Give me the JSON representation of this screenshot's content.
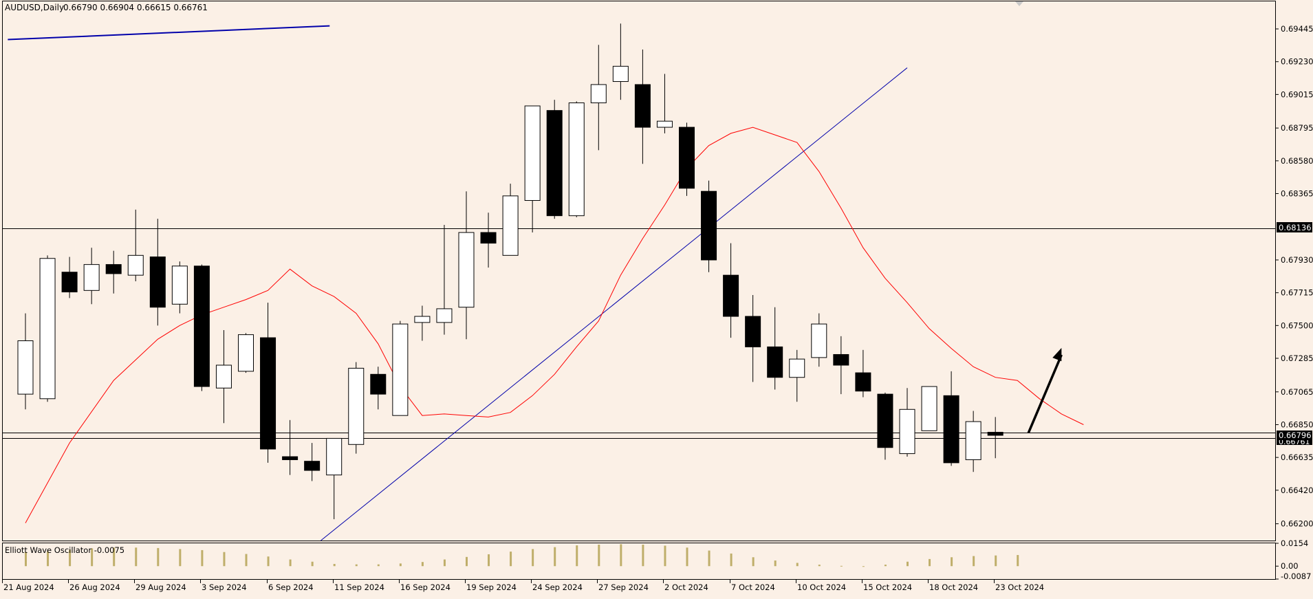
{
  "header": {
    "symbol": "AUDUSD,Daily",
    "ohlc": "0.66790 0.66904 0.66615 0.66761"
  },
  "indicator": {
    "label": "Elliott Wave Oscillator -0.0075",
    "scale_labels": [
      "0.0154",
      "0.00",
      "-0.0087"
    ]
  },
  "price_labels": {
    "line_high": "0.68136",
    "current": "0.66796",
    "current_hidden": "0.66761"
  },
  "colors": {
    "background": "#fbf0e6",
    "bull_body": "#ffffff",
    "bear_body": "#000000",
    "ma_line": "#ff0000",
    "trendline": "#0000aa",
    "osc_bar": "#bfae6a",
    "arrow": "#000000"
  },
  "chart_data": {
    "type": "candlestick",
    "title": "AUDUSD,Daily",
    "ylim": [
      0.6609,
      0.6963
    ],
    "y_ticks": [
      0.69445,
      0.6923,
      0.69015,
      0.68795,
      0.6858,
      0.68365,
      0.6793,
      0.67715,
      0.675,
      0.67285,
      0.67065,
      0.6685,
      0.66635,
      0.6642,
      0.662
    ],
    "y_tick_labels": [
      "0.69445",
      "0.69230",
      "0.69015",
      "0.68795",
      "0.68580",
      "0.68365",
      "0.67930",
      "0.67715",
      "0.67500",
      "0.67285",
      "0.67065",
      "0.66850",
      "0.66635",
      "0.66420",
      "0.66200"
    ],
    "x_tick_labels": [
      "21 Aug 2024",
      "26 Aug 2024",
      "29 Aug 2024",
      "3 Sep 2024",
      "6 Sep 2024",
      "11 Sep 2024",
      "16 Sep 2024",
      "19 Sep 2024",
      "24 Sep 2024",
      "27 Sep 2024",
      "2 Oct 2024",
      "7 Oct 2024",
      "10 Oct 2024",
      "15 Oct 2024",
      "18 Oct 2024",
      "23 Oct 2024"
    ],
    "x_tick_candle_index": [
      0,
      3,
      6,
      9,
      12,
      15,
      18,
      21,
      24,
      27,
      30,
      33,
      36,
      39,
      42,
      45
    ],
    "candles": [
      {
        "o": 0.6705,
        "h": 0.6758,
        "l": 0.6695,
        "c": 0.674
      },
      {
        "o": 0.6702,
        "h": 0.6796,
        "l": 0.67,
        "c": 0.6794
      },
      {
        "o": 0.6785,
        "h": 0.6795,
        "l": 0.6768,
        "c": 0.6772
      },
      {
        "o": 0.6773,
        "h": 0.6801,
        "l": 0.6764,
        "c": 0.679
      },
      {
        "o": 0.679,
        "h": 0.6799,
        "l": 0.6771,
        "c": 0.6784
      },
      {
        "o": 0.6783,
        "h": 0.6826,
        "l": 0.6779,
        "c": 0.6796
      },
      {
        "o": 0.6795,
        "h": 0.682,
        "l": 0.675,
        "c": 0.6762
      },
      {
        "o": 0.6764,
        "h": 0.6792,
        "l": 0.6758,
        "c": 0.6789
      },
      {
        "o": 0.6789,
        "h": 0.679,
        "l": 0.6707,
        "c": 0.671
      },
      {
        "o": 0.6709,
        "h": 0.6747,
        "l": 0.6686,
        "c": 0.6724
      },
      {
        "o": 0.672,
        "h": 0.6745,
        "l": 0.6719,
        "c": 0.6744
      },
      {
        "o": 0.6742,
        "h": 0.6765,
        "l": 0.666,
        "c": 0.6669
      },
      {
        "o": 0.6664,
        "h": 0.6688,
        "l": 0.6652,
        "c": 0.6662
      },
      {
        "o": 0.6661,
        "h": 0.6673,
        "l": 0.6648,
        "c": 0.6655
      },
      {
        "o": 0.6652,
        "h": 0.6676,
        "l": 0.6623,
        "c": 0.6676
      },
      {
        "o": 0.6672,
        "h": 0.6726,
        "l": 0.6666,
        "c": 0.6722
      },
      {
        "o": 0.6718,
        "h": 0.6723,
        "l": 0.6695,
        "c": 0.6705
      },
      {
        "o": 0.6691,
        "h": 0.6753,
        "l": 0.6691,
        "c": 0.6751
      },
      {
        "o": 0.6752,
        "h": 0.6763,
        "l": 0.674,
        "c": 0.6756
      },
      {
        "o": 0.6752,
        "h": 0.6816,
        "l": 0.6744,
        "c": 0.6761
      },
      {
        "o": 0.6762,
        "h": 0.6838,
        "l": 0.6741,
        "c": 0.6811
      },
      {
        "o": 0.6811,
        "h": 0.6824,
        "l": 0.6788,
        "c": 0.6804
      },
      {
        "o": 0.6796,
        "h": 0.6843,
        "l": 0.6796,
        "c": 0.6835
      },
      {
        "o": 0.6832,
        "h": 0.6892,
        "l": 0.6811,
        "c": 0.6894
      },
      {
        "o": 0.6891,
        "h": 0.6898,
        "l": 0.682,
        "c": 0.6822
      },
      {
        "o": 0.6822,
        "h": 0.6897,
        "l": 0.6821,
        "c": 0.6896
      },
      {
        "o": 0.6896,
        "h": 0.6934,
        "l": 0.6865,
        "c": 0.6908
      },
      {
        "o": 0.691,
        "h": 0.6948,
        "l": 0.6898,
        "c": 0.692
      },
      {
        "o": 0.6908,
        "h": 0.6931,
        "l": 0.6856,
        "c": 0.688
      },
      {
        "o": 0.688,
        "h": 0.6915,
        "l": 0.6876,
        "c": 0.6884
      },
      {
        "o": 0.688,
        "h": 0.6883,
        "l": 0.6835,
        "c": 0.684
      },
      {
        "o": 0.6838,
        "h": 0.6845,
        "l": 0.6785,
        "c": 0.6793
      },
      {
        "o": 0.6783,
        "h": 0.6804,
        "l": 0.6742,
        "c": 0.6756
      },
      {
        "o": 0.6756,
        "h": 0.677,
        "l": 0.6713,
        "c": 0.6736
      },
      {
        "o": 0.6736,
        "h": 0.6762,
        "l": 0.6708,
        "c": 0.6716
      },
      {
        "o": 0.6716,
        "h": 0.6734,
        "l": 0.67,
        "c": 0.6728
      },
      {
        "o": 0.6729,
        "h": 0.6758,
        "l": 0.6723,
        "c": 0.6751
      },
      {
        "o": 0.6731,
        "h": 0.6743,
        "l": 0.6705,
        "c": 0.6724
      },
      {
        "o": 0.6719,
        "h": 0.6734,
        "l": 0.6703,
        "c": 0.6707
      },
      {
        "o": 0.6705,
        "h": 0.6706,
        "l": 0.6662,
        "c": 0.667
      },
      {
        "o": 0.6666,
        "h": 0.6709,
        "l": 0.6664,
        "c": 0.6695
      },
      {
        "o": 0.6681,
        "h": 0.671,
        "l": 0.6681,
        "c": 0.671
      },
      {
        "o": 0.6704,
        "h": 0.672,
        "l": 0.6658,
        "c": 0.666
      },
      {
        "o": 0.6662,
        "h": 0.6694,
        "l": 0.6654,
        "c": 0.6687
      },
      {
        "o": 0.668,
        "h": 0.669,
        "l": 0.6663,
        "c": 0.6678
      }
    ],
    "moving_average": [
      [
        0,
        0.66205
      ],
      [
        2,
        0.6673
      ],
      [
        4,
        0.6714
      ],
      [
        6,
        0.6741
      ],
      [
        7,
        0.675
      ],
      [
        8,
        0.6757
      ],
      [
        9,
        0.6762
      ],
      [
        10,
        0.6767
      ],
      [
        11,
        0.6773
      ],
      [
        12,
        0.6787
      ],
      [
        13,
        0.6776
      ],
      [
        14,
        0.6769
      ],
      [
        15,
        0.6758
      ],
      [
        16,
        0.6738
      ],
      [
        17,
        0.671
      ],
      [
        18,
        0.6691
      ],
      [
        19,
        0.6692
      ],
      [
        20,
        0.6691
      ],
      [
        21,
        0.669
      ],
      [
        22,
        0.6693
      ],
      [
        23,
        0.6704
      ],
      [
        24,
        0.6718
      ],
      [
        25,
        0.6736
      ],
      [
        26,
        0.6753
      ],
      [
        27,
        0.6783
      ],
      [
        28,
        0.6807
      ],
      [
        29,
        0.6829
      ],
      [
        30,
        0.6853
      ],
      [
        31,
        0.6868
      ],
      [
        32,
        0.6876
      ],
      [
        33,
        0.688
      ],
      [
        34,
        0.6875
      ],
      [
        35,
        0.687
      ],
      [
        36,
        0.6851
      ],
      [
        37,
        0.6827
      ],
      [
        38,
        0.6801
      ],
      [
        39,
        0.6781
      ],
      [
        40,
        0.6765
      ],
      [
        41,
        0.6748
      ],
      [
        42,
        0.6735
      ],
      [
        43,
        0.6723
      ],
      [
        44,
        0.6716
      ],
      [
        45,
        0.6714
      ],
      [
        46,
        0.6702
      ],
      [
        47,
        0.6692
      ],
      [
        48,
        0.6685
      ]
    ],
    "trendline": [
      [
        13.4,
        0.6609
      ],
      [
        40.0,
        0.6919
      ]
    ],
    "trendline_upper": [
      [
        -0.8,
        0.69375
      ],
      [
        13.8,
        0.69465
      ]
    ],
    "horizontal_lines": [
      0.68136,
      0.66796,
      0.66761
    ],
    "arrow": {
      "from": [
        45.5,
        0.66796
      ],
      "to": [
        47.0,
        0.67353
      ]
    },
    "oscillator": [
      0.0095,
      0.01,
      0.011,
      0.012,
      0.0125,
      0.0125,
      0.0122,
      0.0115,
      0.0108,
      0.0095,
      0.0082,
      0.0065,
      0.0045,
      0.003,
      0.0015,
      0.0012,
      0.0012,
      0.0018,
      0.0028,
      0.0045,
      0.0062,
      0.008,
      0.0098,
      0.0115,
      0.0128,
      0.014,
      0.0145,
      0.0148,
      0.0145,
      0.0138,
      0.0125,
      0.0105,
      0.0085,
      0.006,
      0.0038,
      0.0022,
      0.001,
      0.0002,
      -0.0002,
      0.001,
      0.003,
      0.0048,
      0.006,
      0.0068,
      0.0072,
      0.0075
    ]
  }
}
